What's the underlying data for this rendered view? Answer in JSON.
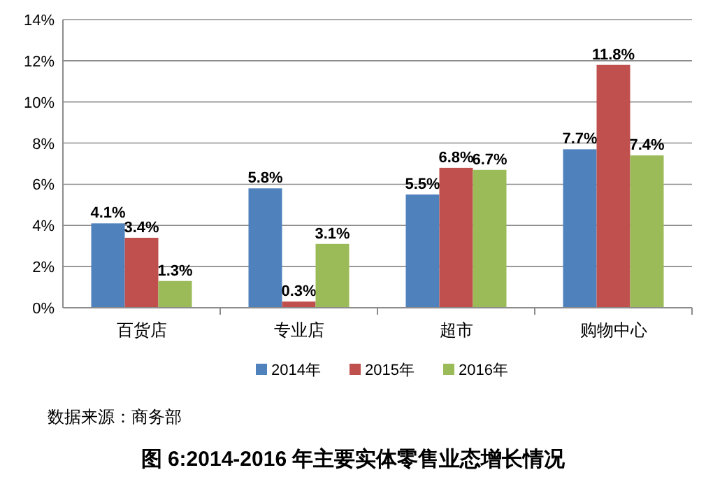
{
  "chart_data": {
    "type": "bar",
    "title": "图 6:2014-2016 年主要实体零售业态增长情况",
    "annotations": [
      "数据来源：商务部"
    ],
    "categories": [
      "百货店",
      "专业店",
      "超市",
      "购物中心"
    ],
    "series": [
      {
        "name": "2014年",
        "color": "#4f81bd",
        "values": [
          4.1,
          5.8,
          5.5,
          7.7
        ],
        "value_labels": [
          "4.1%",
          "5.8%",
          "5.5%",
          "7.7%"
        ]
      },
      {
        "name": "2015年",
        "color": "#c0504d",
        "values": [
          3.4,
          0.3,
          6.8,
          11.8
        ],
        "value_labels": [
          "3.4%",
          "0.3%",
          "6.8%",
          "11.8%"
        ]
      },
      {
        "name": "2016年",
        "color": "#9bbb59",
        "values": [
          1.3,
          3.1,
          6.7,
          7.4
        ],
        "value_labels": [
          "1.3%",
          "3.1%",
          "6.7%",
          "7.4%"
        ]
      }
    ],
    "ylim": [
      0,
      14
    ],
    "yticks": [
      {
        "value": 0,
        "label": "0%"
      },
      {
        "value": 2,
        "label": "2%"
      },
      {
        "value": 4,
        "label": "4%"
      },
      {
        "value": 6,
        "label": "6%"
      },
      {
        "value": 8,
        "label": "8%"
      },
      {
        "value": 10,
        "label": "10%"
      },
      {
        "value": 12,
        "label": "12%"
      },
      {
        "value": 14,
        "label": "14%"
      }
    ],
    "grid": "y",
    "legend": "bottom"
  }
}
